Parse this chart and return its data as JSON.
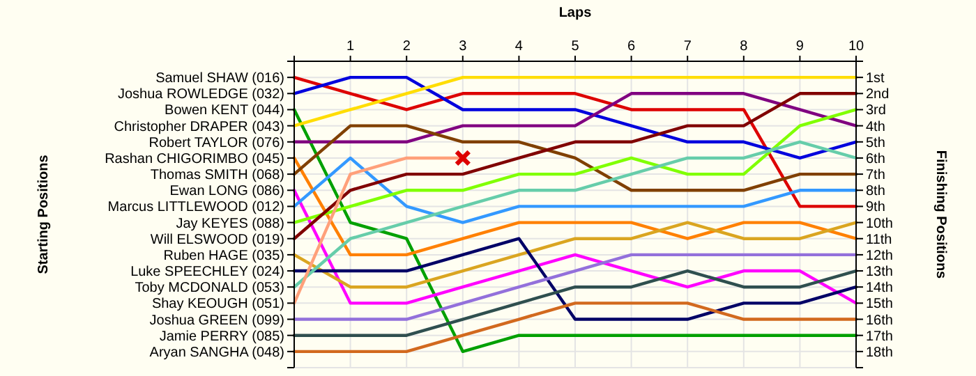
{
  "chart_data": {
    "type": "line",
    "xlabel": "Laps",
    "y2label": "Finishing Positions",
    "annotations": [
      "Starting Positions"
    ],
    "x": [
      0,
      1,
      2,
      3,
      4,
      5,
      6,
      7,
      8,
      9,
      10
    ],
    "xlim": [
      0,
      10
    ],
    "xticks": [
      {
        "value": 0,
        "label": null
      },
      1,
      2,
      3,
      4,
      5,
      6,
      7,
      8,
      9,
      10
    ],
    "ylim": [
      19,
      0
    ],
    "yticks": [
      {
        "value": 0,
        "label": null
      },
      {
        "value": 1,
        "label": "1st"
      },
      {
        "value": 2,
        "label": "2nd"
      },
      {
        "value": 3,
        "label": "3rd"
      },
      {
        "value": 4,
        "label": "4th"
      },
      {
        "value": 5,
        "label": "5th"
      },
      {
        "value": 6,
        "label": "6th"
      },
      {
        "value": 7,
        "label": "7th"
      },
      {
        "value": 8,
        "label": "8th"
      },
      {
        "value": 9,
        "label": "9th"
      },
      {
        "value": 10,
        "label": "10th"
      },
      {
        "value": 11,
        "label": "11th"
      },
      {
        "value": 12,
        "label": "12th"
      },
      {
        "value": 13,
        "label": "13th"
      },
      {
        "value": 14,
        "label": "14th"
      },
      {
        "value": 15,
        "label": "15th"
      },
      {
        "value": 16,
        "label": "16th"
      },
      {
        "value": 17,
        "label": "17th"
      },
      {
        "value": 18,
        "label": "18th"
      },
      {
        "value": 19,
        "label": null
      }
    ],
    "grid": true,
    "marker": "none",
    "line_style": "solid",
    "series": [
      {
        "name": "Samuel SHAW (016)",
        "color": "#dd0000",
        "values": [
          1,
          2,
          3,
          2,
          2,
          2,
          3,
          3,
          3,
          9,
          9
        ]
      },
      {
        "name": "Joshua ROWLEDGE (032)",
        "color": "#0000dd",
        "values": [
          2,
          1,
          1,
          3,
          3,
          3,
          4,
          5,
          5,
          6,
          5
        ]
      },
      {
        "name": "Bowen KENT (044)",
        "color": "#00a000",
        "values": [
          3,
          10,
          11,
          18,
          17,
          17,
          17,
          17,
          17,
          17,
          17
        ]
      },
      {
        "name": "Christopher DRAPER (043)",
        "color": "#ffdd00",
        "values": [
          4,
          3,
          2,
          1,
          1,
          1,
          1,
          1,
          1,
          1,
          1
        ]
      },
      {
        "name": "Robert TAYLOR (076)",
        "color": "#800080",
        "values": [
          5,
          5,
          5,
          4,
          4,
          4,
          2,
          2,
          2,
          3,
          4
        ]
      },
      {
        "name": "Rashan CHIGORIMBO (045)",
        "color": "#ff8000",
        "values": [
          6,
          12,
          12,
          11,
          10,
          10,
          10,
          11,
          10,
          10,
          11
        ]
      },
      {
        "name": "Thomas SMITH (068)",
        "color": "#804000",
        "values": [
          7,
          4,
          4,
          5,
          5,
          6,
          8,
          8,
          8,
          7,
          7
        ]
      },
      {
        "name": "Ewan LONG (086)",
        "color": "#ff00ff",
        "values": [
          8,
          15,
          15,
          14,
          13,
          12,
          13,
          14,
          13,
          13,
          15
        ]
      },
      {
        "name": "Marcus LITTLEWOOD (012)",
        "color": "#3399ff",
        "values": [
          9,
          6,
          9,
          10,
          9,
          9,
          9,
          9,
          9,
          8,
          8
        ]
      },
      {
        "name": "Jay KEYES (088)",
        "color": "#80ff00",
        "values": [
          10,
          9,
          8,
          8,
          7,
          7,
          6,
          7,
          7,
          4,
          3
        ]
      },
      {
        "name": "Will ELSWOOD (019)",
        "color": "#800000",
        "values": [
          11,
          8,
          7,
          7,
          6,
          5,
          5,
          4,
          4,
          2,
          2
        ]
      },
      {
        "name": "Ruben HAGE (035)",
        "color": "#daa520",
        "values": [
          12,
          14,
          14,
          13,
          12,
          11,
          11,
          10,
          11,
          11,
          10
        ]
      },
      {
        "name": "Luke SPEECHLEY (024)",
        "color": "#000066",
        "values": [
          13,
          13,
          13,
          12,
          11,
          16,
          16,
          16,
          15,
          15,
          14
        ]
      },
      {
        "name": "Toby MCDONALD (053)",
        "color": "#66cdaa",
        "values": [
          14,
          11,
          10,
          9,
          8,
          8,
          7,
          6,
          6,
          5,
          6
        ]
      },
      {
        "name": "Shay KEOUGH (051)",
        "color": "#ffa07a",
        "values": [
          15,
          7,
          6,
          6,
          null,
          null,
          null,
          null,
          null,
          null,
          null
        ]
      },
      {
        "name": "Joshua GREEN (099)",
        "color": "#9370db",
        "values": [
          16,
          16,
          16,
          15,
          14,
          13,
          12,
          12,
          12,
          12,
          12
        ]
      },
      {
        "name": "Jamie PERRY (085)",
        "color": "#2f4f4f",
        "values": [
          17,
          17,
          17,
          16,
          15,
          14,
          14,
          13,
          14,
          14,
          13
        ]
      },
      {
        "name": "Aryan SANGHA (048)",
        "color": "#d2691e",
        "values": [
          18,
          18,
          18,
          17,
          16,
          15,
          15,
          15,
          16,
          16,
          16
        ]
      },
      {
        "type": "scatter",
        "color": "#dd0000",
        "marker": "cross",
        "x": [
          3
        ],
        "values": [
          6
        ]
      }
    ]
  }
}
